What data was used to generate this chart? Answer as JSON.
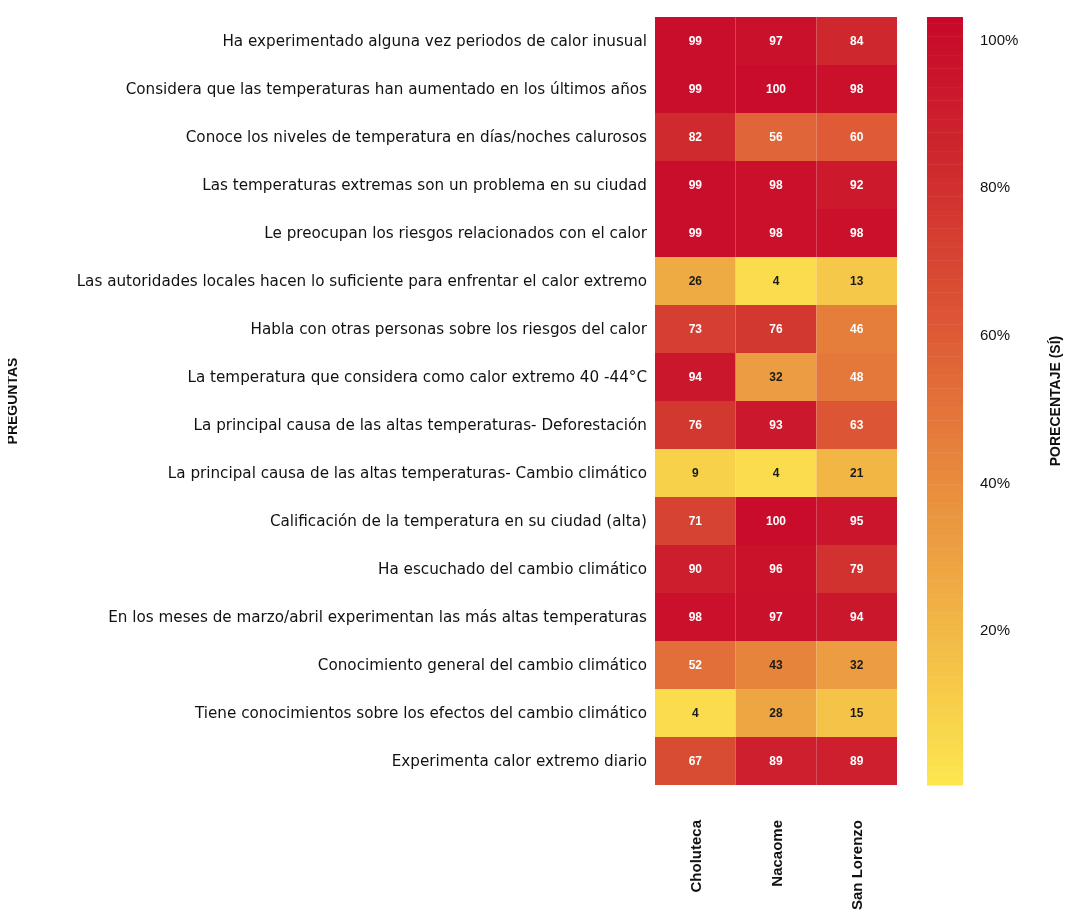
{
  "chart_data": {
    "type": "heatmap",
    "ylabel": "PREGUNTAS",
    "clabel": "PORECENTAJE (SÍ)",
    "categories": [
      "Choluteca",
      "Nacaome",
      "San Lorenzo"
    ],
    "y_categories": [
      "Ha experimentado alguna vez periodos de calor inusual",
      "Considera que las temperaturas han aumentado en los últimos años",
      "Conoce los niveles de temperatura en días/noches calurosos",
      "Las temperaturas extremas son un problema en su ciudad",
      "Le preocupan los riesgos relacionados con el calor",
      "Las autoridades locales hacen lo suficiente para enfrentar el calor extremo",
      "Habla con otras personas sobre los riesgos del calor",
      "La temperatura que considera como calor extremo 40 -44°C",
      "La principal causa de las altas temperaturas- Deforestación",
      "La principal causa de las altas temperaturas- Cambio climático",
      "Calificación de la temperatura en su ciudad (alta)",
      "Ha escuchado del cambio climático",
      "En los meses de marzo/abril experimentan las más altas temperaturas",
      "Conocimiento general del cambio climático",
      "Tiene conocimientos sobre los efectos del cambio climático",
      "Experimenta calor extremo diario"
    ],
    "cells": [
      [
        99,
        97,
        84
      ],
      [
        99,
        100,
        98
      ],
      [
        82,
        56,
        60
      ],
      [
        99,
        98,
        92
      ],
      [
        99,
        98,
        98
      ],
      [
        26,
        4,
        13
      ],
      [
        73,
        76,
        46
      ],
      [
        94,
        32,
        48
      ],
      [
        76,
        93,
        63
      ],
      [
        9,
        4,
        21
      ],
      [
        71,
        100,
        95
      ],
      [
        90,
        96,
        79
      ],
      [
        98,
        97,
        94
      ],
      [
        52,
        43,
        32
      ],
      [
        4,
        28,
        15
      ],
      [
        67,
        89,
        89
      ]
    ],
    "data_labels": true,
    "clim": [
      -1,
      103
    ],
    "cticks": [
      {
        "value": 20,
        "label": "20%"
      },
      {
        "value": 40,
        "label": "40%"
      },
      {
        "value": 60,
        "label": "60%"
      },
      {
        "value": 80,
        "label": "80%"
      },
      {
        "value": 100,
        "label": "100%"
      }
    ]
  }
}
